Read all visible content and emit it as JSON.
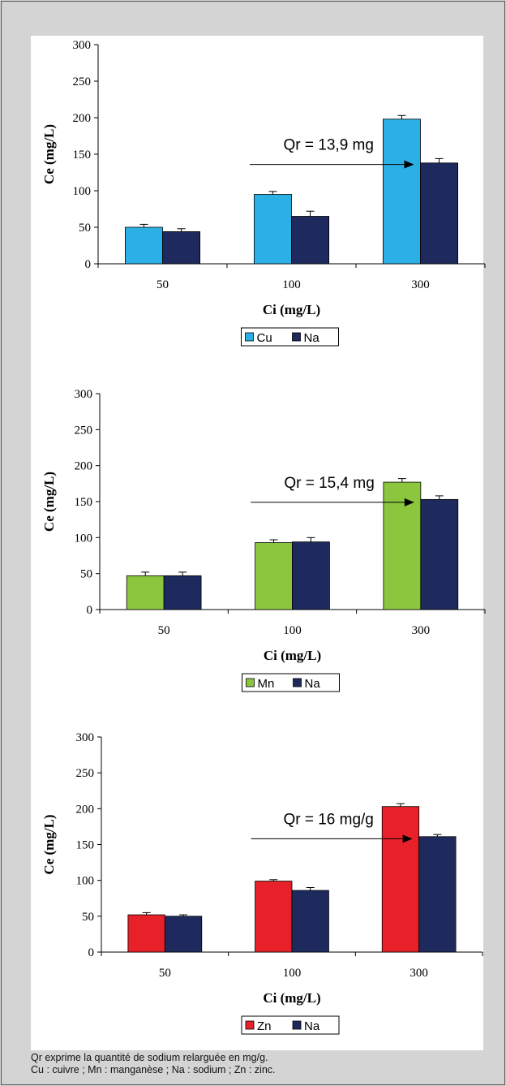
{
  "chart_data": [
    {
      "type": "bar",
      "categories": [
        "50",
        "100",
        "300"
      ],
      "series": [
        {
          "name": "Cu",
          "color": "#2bb0e6",
          "values": [
            50,
            95,
            198
          ],
          "errors": [
            4,
            4,
            5
          ]
        },
        {
          "name": "Na",
          "color": "#1e2a5e",
          "values": [
            44,
            65,
            138
          ],
          "errors": [
            4,
            7,
            6
          ]
        }
      ],
      "ylim": [
        0,
        300
      ],
      "yticks": [
        0,
        50,
        100,
        150,
        200,
        250,
        300
      ],
      "xlabel": "Ci (mg/L)",
      "ylabel": "Ce (mg/L)",
      "annotation": {
        "text": "Qr = 13,9 mg",
        "arrow_from_category": 1,
        "arrow_to_value": 136
      },
      "legend": "bottom"
    },
    {
      "type": "bar",
      "categories": [
        "50",
        "100",
        "300"
      ],
      "series": [
        {
          "name": "Mn",
          "color": "#8cc63f",
          "values": [
            47,
            93,
            177
          ],
          "errors": [
            5,
            4,
            5
          ]
        },
        {
          "name": "Na",
          "color": "#1e2a5e",
          "values": [
            47,
            94,
            153
          ],
          "errors": [
            5,
            6,
            5
          ]
        }
      ],
      "ylim": [
        0,
        300
      ],
      "yticks": [
        0,
        50,
        100,
        150,
        200,
        250,
        300
      ],
      "xlabel": "Ci (mg/L)",
      "ylabel": "Ce (mg/L)",
      "annotation": {
        "text": "Qr = 15,4 mg",
        "arrow_from_category": 1,
        "arrow_to_value": 149
      },
      "legend": "bottom"
    },
    {
      "type": "bar",
      "categories": [
        "50",
        "100",
        "300"
      ],
      "series": [
        {
          "name": "Zn",
          "color": "#e8202a",
          "values": [
            52,
            99,
            203
          ],
          "errors": [
            3,
            2,
            4
          ]
        },
        {
          "name": "Na",
          "color": "#1e2a5e",
          "values": [
            50,
            86,
            161
          ],
          "errors": [
            2,
            4,
            3
          ]
        }
      ],
      "ylim": [
        0,
        300
      ],
      "yticks": [
        0,
        50,
        100,
        150,
        200,
        250,
        300
      ],
      "xlabel": "Ci (mg/L)",
      "ylabel": "Ce (mg/L)",
      "annotation": {
        "text": "Qr = 16 mg/g",
        "arrow_from_category": 1,
        "arrow_to_value": 158
      },
      "legend": "bottom"
    }
  ],
  "caption": {
    "line1": "Qr exprime la quantité de sodium relarguée en mg/g.",
    "line2": "Cu : cuivre ; Mn : manganèse ; Na : sodium ; Zn : zinc."
  }
}
